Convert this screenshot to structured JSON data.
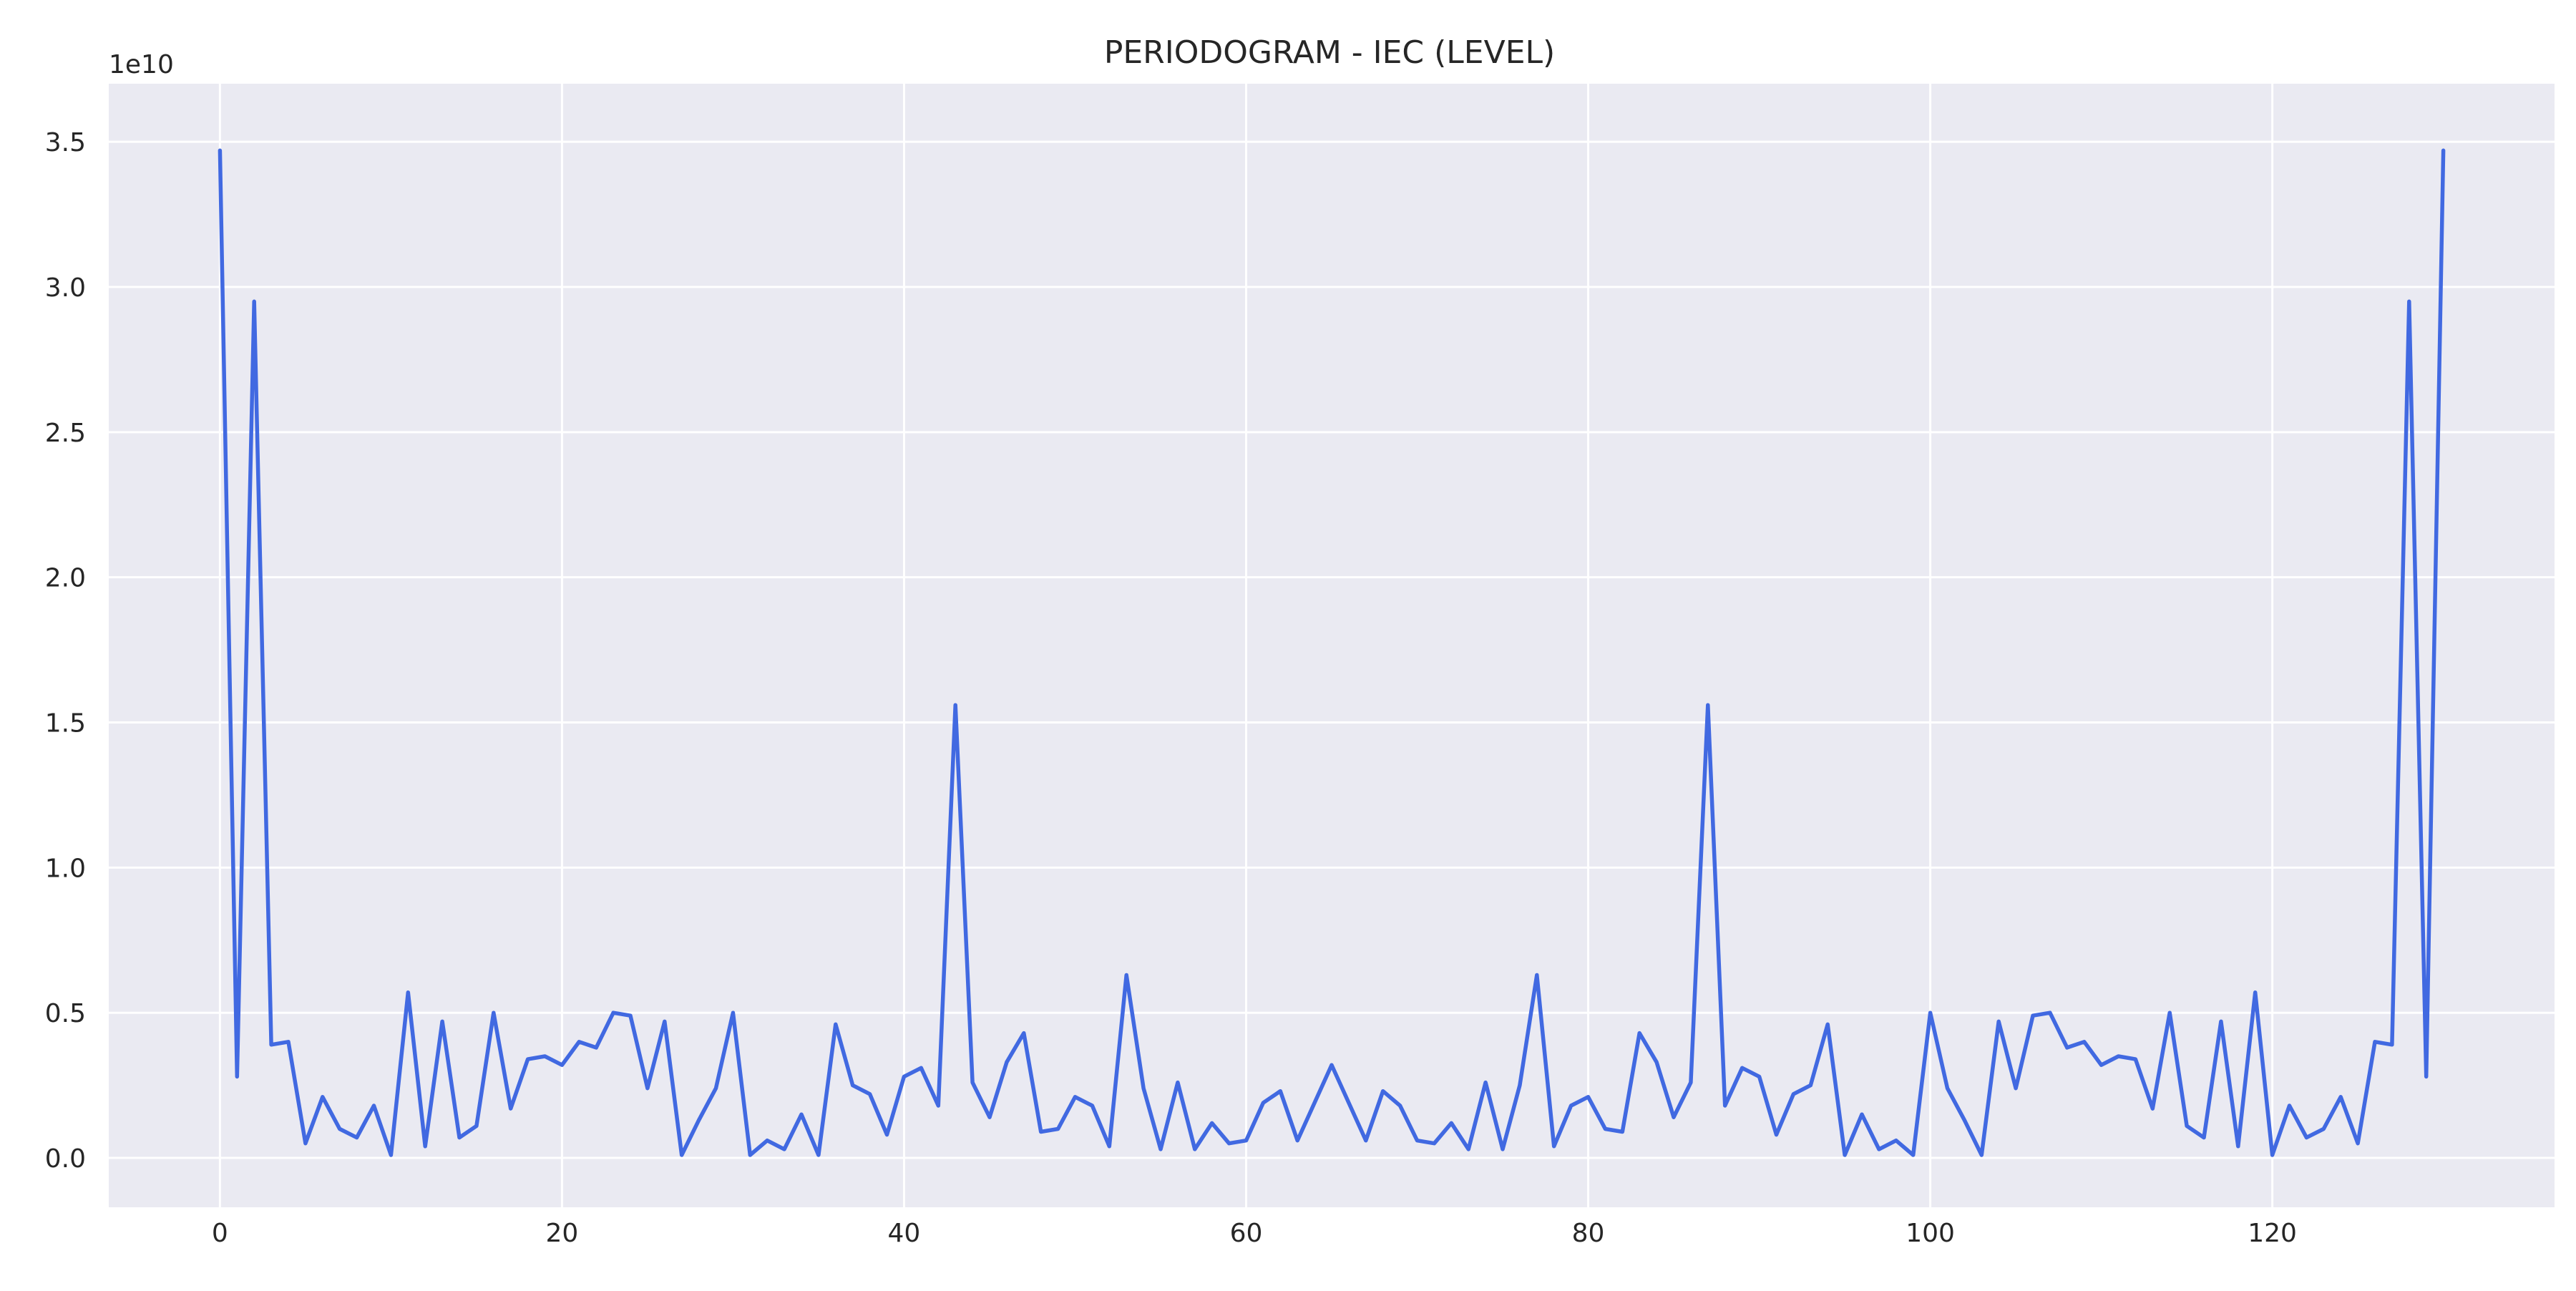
{
  "chart_data": {
    "type": "line",
    "title": "PERIODOGRAM - IEC (LEVEL)",
    "xlabel": "",
    "ylabel": "",
    "y_offset_label": "1e10",
    "y_scale_factor": 10000000000,
    "xlim": [
      -6.5,
      136.5
    ],
    "ylim": [
      -0.17,
      3.7
    ],
    "x_ticks": [
      0,
      20,
      40,
      60,
      80,
      100,
      120
    ],
    "y_ticks": [
      0.0,
      0.5,
      1.0,
      1.5,
      2.0,
      2.5,
      3.0,
      3.5
    ],
    "y_tick_labels": [
      "0.0",
      "0.5",
      "1.0",
      "1.5",
      "2.0",
      "2.5",
      "3.0",
      "3.5"
    ],
    "grid": true,
    "legend": "none",
    "colors": {
      "line": "#4169e1",
      "plot_bg": "#eaeaf2",
      "grid": "#ffffff"
    },
    "series": [
      {
        "name": "",
        "values": [
          3.47,
          0.28,
          2.95,
          0.39,
          0.4,
          0.05,
          0.21,
          0.1,
          0.07,
          0.18,
          0.01,
          0.57,
          0.04,
          0.47,
          0.07,
          0.11,
          0.5,
          0.17,
          0.34,
          0.35,
          0.32,
          0.4,
          0.38,
          0.5,
          0.49,
          0.24,
          0.47,
          0.01,
          0.13,
          0.24,
          0.5,
          0.01,
          0.06,
          0.03,
          0.15,
          0.01,
          0.46,
          0.25,
          0.22,
          0.08,
          0.28,
          0.31,
          0.18,
          1.56,
          0.26,
          0.14,
          0.33,
          0.43,
          0.09,
          0.1,
          0.21,
          0.18,
          0.04,
          0.63,
          0.24,
          0.03,
          0.26,
          0.03,
          0.12,
          0.05,
          0.06,
          0.19,
          0.23,
          0.06,
          0.19,
          0.32,
          0.19,
          0.06,
          0.23,
          0.18,
          0.06,
          0.05,
          0.12,
          0.03,
          0.26,
          0.03,
          0.25,
          0.63,
          0.04,
          0.18,
          0.21,
          0.1,
          0.09,
          0.43,
          0.33,
          0.14,
          0.26,
          1.56,
          0.18,
          0.31,
          0.28,
          0.08,
          0.22,
          0.25,
          0.46,
          0.01,
          0.15,
          0.03,
          0.06,
          0.01,
          0.5,
          0.24,
          0.13,
          0.01,
          0.47,
          0.24,
          0.49,
          0.5,
          0.38,
          0.4,
          0.32,
          0.35,
          0.34,
          0.17,
          0.5,
          0.11,
          0.07,
          0.47,
          0.04,
          0.57,
          0.01,
          0.18,
          0.07,
          0.1,
          0.21,
          0.05,
          0.4,
          0.39,
          2.95,
          0.28,
          3.47
        ]
      }
    ]
  }
}
